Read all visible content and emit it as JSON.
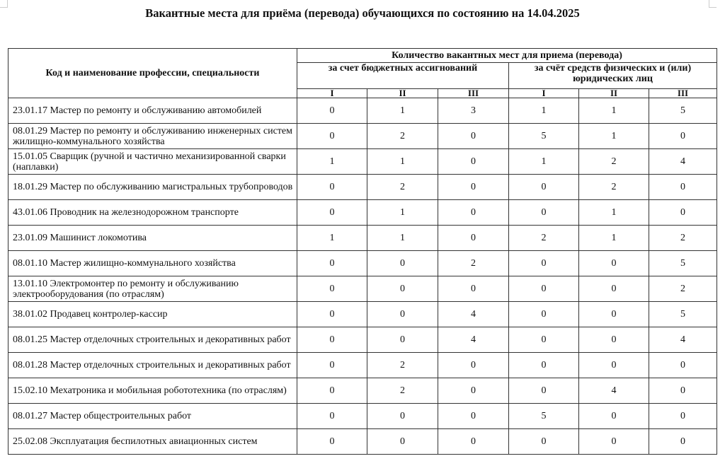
{
  "title": "Вакантные места для приёма (перевода) обучающихся по состоянию на 14.04.2025",
  "header": {
    "name_col": "Код и наименование профессии, специальности",
    "group": "Количество вакантных мест для приема (перевода)",
    "budget": "за счет бюджетных ассигнований",
    "paid": "за счёт средств физических и (или) юридических лиц",
    "courses": [
      "I",
      "II",
      "III",
      "I",
      "II",
      "III"
    ]
  },
  "rows": [
    {
      "name": "23.01.17 Мастер по ремонту и обслуживанию автомобилей",
      "v": [
        "0",
        "1",
        "3",
        "1",
        "1",
        "5"
      ]
    },
    {
      "name": "08.01.29 Мастер по ремонту и обслуживанию инженерных систем жилищно-коммунального хозяйства",
      "v": [
        "0",
        "2",
        "0",
        "5",
        "1",
        "0"
      ]
    },
    {
      "name": "15.01.05 Сварщик (ручной и частично механизированной сварки (наплавки)",
      "v": [
        "1",
        "1",
        "0",
        "1",
        "2",
        "4"
      ]
    },
    {
      "name": "18.01.29 Мастер по обслуживанию магистральных трубопроводов",
      "v": [
        "0",
        "2",
        "0",
        "0",
        "2",
        "0"
      ]
    },
    {
      "name": "43.01.06 Проводник на железнодорожном транспорте",
      "v": [
        "0",
        "1",
        "0",
        "0",
        "1",
        "0"
      ]
    },
    {
      "name": "23.01.09 Машинист локомотива",
      "v": [
        "1",
        "1",
        "0",
        "2",
        "1",
        "2"
      ]
    },
    {
      "name": "08.01.10 Мастер жилищно-коммунального хозяйства",
      "v": [
        "0",
        "0",
        "2",
        "0",
        "0",
        "5"
      ]
    },
    {
      "name": "13.01.10 Электромонтер по ремонту и обслуживанию электрооборудования (по отраслям)",
      "v": [
        "0",
        "0",
        "0",
        "0",
        "0",
        "2"
      ]
    },
    {
      "name": "38.01.02 Продавец контролер-кассир",
      "v": [
        "0",
        "0",
        "4",
        "0",
        "0",
        "5"
      ]
    },
    {
      "name": "08.01.25 Мастер отделочных строительных и декоративных работ",
      "v": [
        "0",
        "0",
        "4",
        "0",
        "0",
        "4"
      ]
    },
    {
      "name": "08.01.28 Мастер отделочных строительных и декоративных работ",
      "v": [
        "0",
        "2",
        "0",
        "0",
        "0",
        "0"
      ]
    },
    {
      "name": "15.02.10 Мехатроника и мобильная робототехника (по отраслям)",
      "v": [
        "0",
        "2",
        "0",
        "0",
        "4",
        "0"
      ]
    },
    {
      "name": "08.01.27 Мастер общестроительных работ",
      "v": [
        "0",
        "0",
        "0",
        "5",
        "0",
        "0"
      ]
    },
    {
      "name": "25.02.08 Эксплуатация беспилотных авиационных систем",
      "v": [
        "0",
        "0",
        "0",
        "0",
        "0",
        "0"
      ]
    }
  ]
}
